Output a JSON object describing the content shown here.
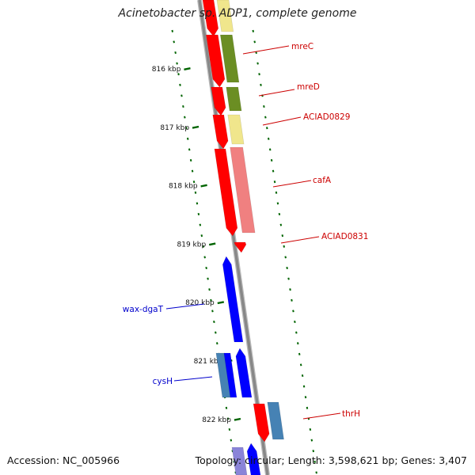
{
  "title": "Acinetobacter sp. ADP1, complete genome",
  "footer": {
    "accession": "Accession: NC_005966",
    "topology": "Topology: circular; Length: 3,598,621 bp; Genes: 3,407"
  },
  "ticks": [
    {
      "kbp": 816,
      "label": "816 kbp"
    },
    {
      "kbp": 817,
      "label": "817 kbp"
    },
    {
      "kbp": 818,
      "label": "818 kbp"
    },
    {
      "kbp": 819,
      "label": "819 kbp"
    },
    {
      "kbp": 820,
      "label": "820 kbp"
    },
    {
      "kbp": 821,
      "label": "821 kbp"
    },
    {
      "kbp": 822,
      "label": "822 kbp"
    }
  ],
  "colors": {
    "red": "#ff0000",
    "blue": "#0000ff",
    "olive": "#6b8e23",
    "khaki": "#f0e68c",
    "pink": "#f08080",
    "steelblue": "#4682b4",
    "lavender": "#8a84d8",
    "tick_green": "#006400",
    "axis_gray": "#888888",
    "label_red": "#cc0000",
    "label_blue": "#0000cc"
  },
  "labels": [
    {
      "name": "mreC",
      "color": "label_red",
      "side": "right"
    },
    {
      "name": "mreD",
      "color": "label_red",
      "side": "right"
    },
    {
      "name": "ACIAD0829",
      "color": "label_red",
      "side": "right"
    },
    {
      "name": "cafA",
      "color": "label_red",
      "side": "right"
    },
    {
      "name": "ACIAD0831",
      "color": "label_red",
      "side": "right"
    },
    {
      "name": "wax-dgaT",
      "color": "label_blue",
      "side": "left"
    },
    {
      "name": "cysH",
      "color": "label_blue",
      "side": "left"
    },
    {
      "name": "thrH",
      "color": "label_red",
      "side": "right"
    }
  ]
}
